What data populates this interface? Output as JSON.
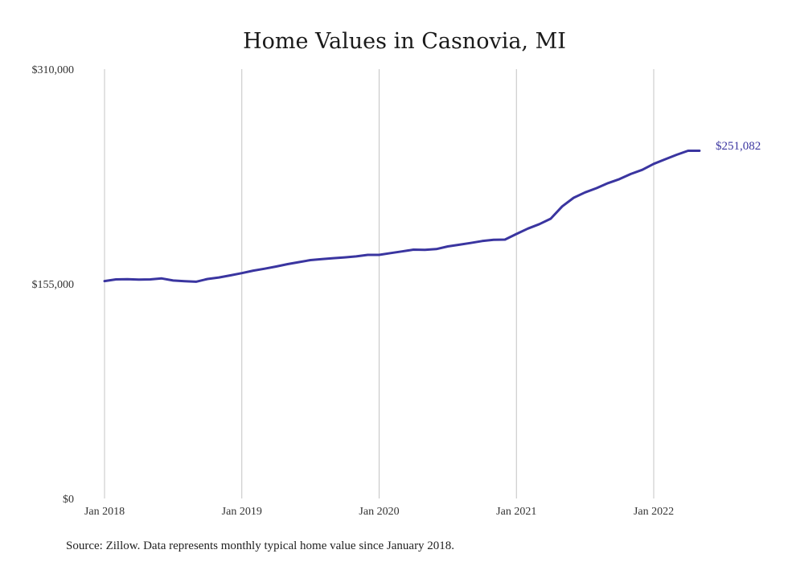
{
  "chart_data": {
    "type": "line",
    "title": "Home Values in Casnovia, MI",
    "xlabel": "",
    "ylabel": "",
    "x_tick_labels": [
      "Jan 2018",
      "Jan 2019",
      "Jan 2020",
      "Jan 2021",
      "Jan 2022"
    ],
    "x_tick_dates": [
      "2018-01",
      "2019-01",
      "2020-01",
      "2021-01",
      "2022-01"
    ],
    "y_tick_labels": [
      "$0",
      "$155,000",
      "$310,000"
    ],
    "ylim": [
      0,
      310000
    ],
    "grid": "vertical",
    "legend": "none",
    "line_color": "#3a35a0",
    "end_label": "$251,082",
    "series": [
      {
        "x": [
          "2018-01",
          "2018-02",
          "2018-03",
          "2018-04",
          "2018-05",
          "2018-06",
          "2018-07",
          "2018-08",
          "2018-09",
          "2018-10",
          "2018-11",
          "2018-12",
          "2019-01",
          "2019-02",
          "2019-03",
          "2019-04",
          "2019-05",
          "2019-06",
          "2019-07",
          "2019-08",
          "2019-09",
          "2019-10",
          "2019-11",
          "2019-12",
          "2020-01",
          "2020-02",
          "2020-03",
          "2020-04",
          "2020-05",
          "2020-06",
          "2020-07",
          "2020-08",
          "2020-09",
          "2020-10",
          "2020-11",
          "2020-12",
          "2021-01",
          "2021-02",
          "2021-03",
          "2021-04",
          "2021-05",
          "2021-06",
          "2021-07",
          "2021-08",
          "2021-09",
          "2021-10",
          "2021-11",
          "2021-12",
          "2022-01",
          "2022-02",
          "2022-03",
          "2022-04",
          "2022-05"
        ],
        "values": [
          157000,
          158200,
          158300,
          158100,
          158200,
          158900,
          157400,
          156900,
          156500,
          158500,
          159600,
          161100,
          162700,
          164500,
          165900,
          167500,
          169200,
          170700,
          172100,
          172800,
          173500,
          174100,
          174800,
          175900,
          175900,
          177200,
          178400,
          179700,
          179500,
          180100,
          182000,
          183200,
          184500,
          185900,
          186800,
          186900,
          191000,
          194900,
          198100,
          202000,
          210900,
          217100,
          221000,
          224100,
          227700,
          230600,
          234300,
          237300,
          241600,
          244900,
          248200,
          251082,
          251082
        ]
      }
    ]
  },
  "source_text": "Source: Zillow. Data represents monthly typical home value since January 2018."
}
